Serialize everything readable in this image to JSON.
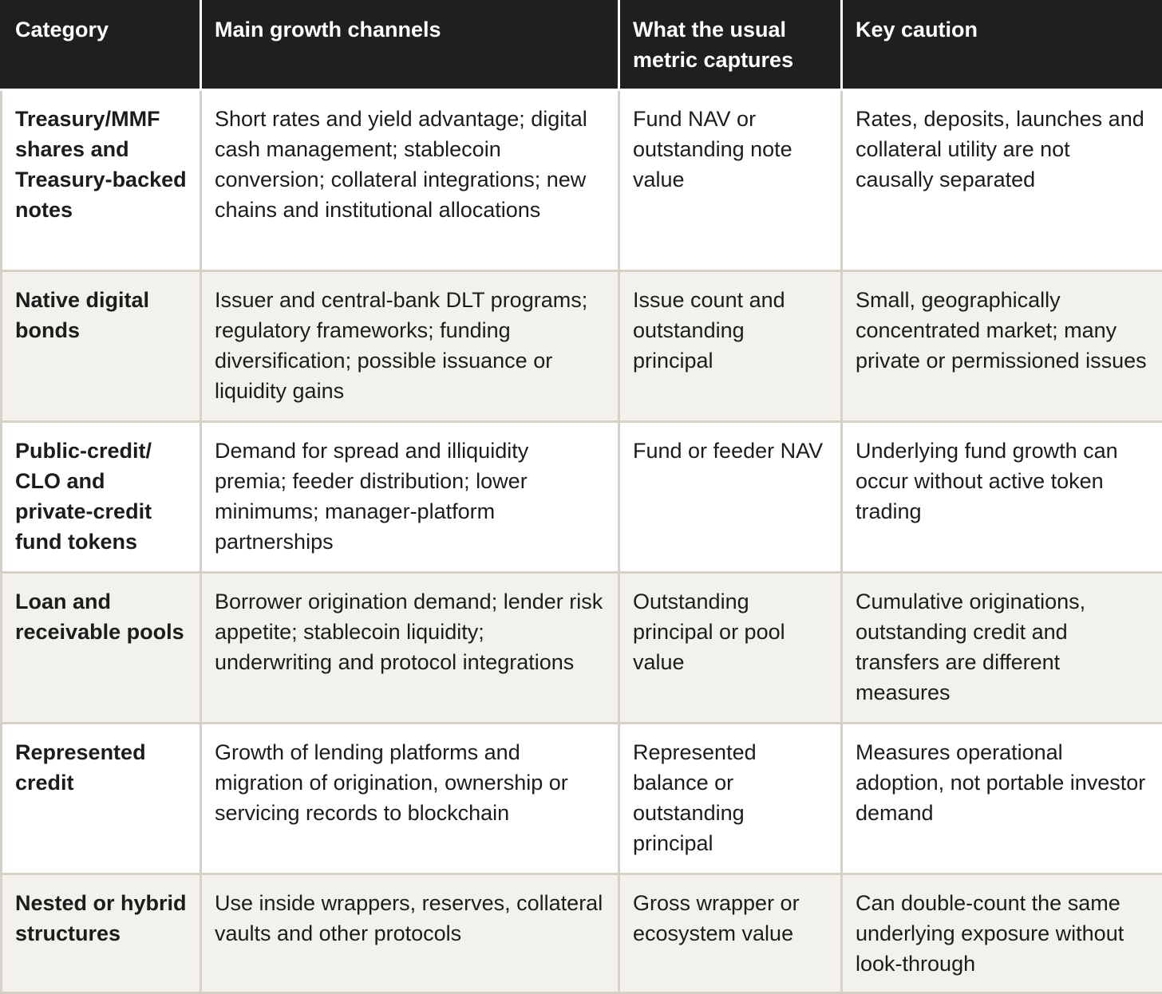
{
  "table": {
    "headers": [
      "Category",
      "Main growth channels",
      "What the usual metric captures",
      "Key caution"
    ],
    "rows": [
      [
        "Treasury/MMF shares and Treasury-backed notes",
        "Short rates and yield advantage; digital cash management; stablecoin conversion; collateral integrations; new chains and institutional allocations",
        "Fund NAV or outstanding note value",
        "Rates, deposits, launches and collateral utility are not causally separated"
      ],
      [
        "Native digital bonds",
        "Issuer and central-bank DLT programs; regulatory frameworks; funding diversification; possible issuance or liquidity gains",
        "Issue count and outstanding principal",
        "Small, geographically concentrated market; many private or permissioned issues"
      ],
      [
        "Public-credit/ CLO and private-credit fund tokens",
        "Demand for spread and illiquidity premia; feeder distribution; lower minimums; manager-platform partnerships",
        "Fund or feeder NAV",
        "Underlying fund growth can occur without active token trading"
      ],
      [
        "Loan and receivable pools",
        "Borrower origination demand; lender risk appetite; stablecoin liquidity; underwriting and protocol integrations",
        "Outstanding principal or pool value",
        "Cumulative originations, outstanding credit and transfers are different measures"
      ],
      [
        "Represented credit",
        "Growth of lending platforms and migration of origination, ownership or servicing records to blockchain",
        "Represented balance or outstanding principal",
        "Measures operational adoption, not portable investor demand"
      ],
      [
        "Nested or hybrid structures",
        "Use inside wrappers, reserves, collateral vaults and other protocols",
        "Gross wrapper or ecosystem value",
        "Can double-count the same underlying exposure without look-through"
      ]
    ]
  }
}
